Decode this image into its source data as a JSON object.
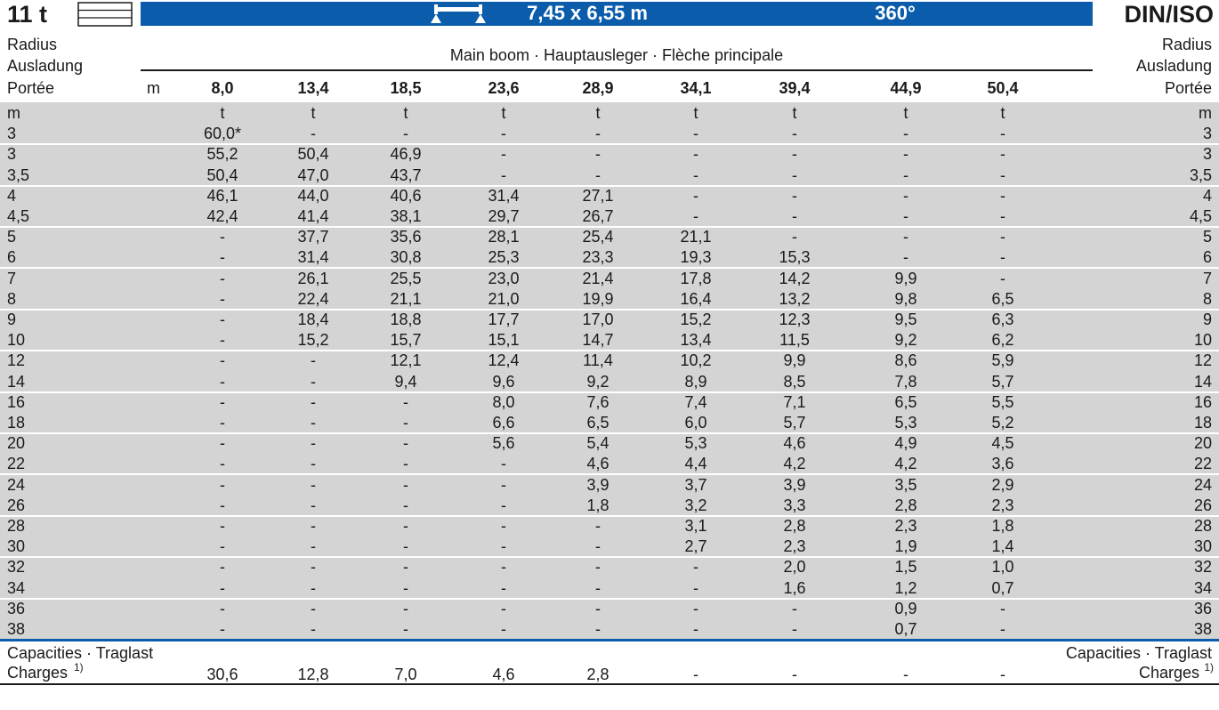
{
  "header": {
    "weight": "11 t",
    "outrigger": "7,45 x 6,55 m",
    "slewing": "360°",
    "standard": "DIN/ISO"
  },
  "labels": {
    "radius": [
      "Radius",
      "Ausladung",
      "Portée"
    ],
    "boom": "Main boom · Hauptausleger · Flèche principale",
    "length_unit": "m"
  },
  "boom_lengths": [
    "8,0",
    "13,4",
    "18,5",
    "23,6",
    "28,9",
    "34,1",
    "39,4",
    "44,9",
    "50,4"
  ],
  "units": {
    "radius": "m",
    "capacity": "t"
  },
  "rows": [
    {
      "radius": "3",
      "values": [
        "60,0*",
        "-",
        "-",
        "-",
        "-",
        "-",
        "-",
        "-",
        "-"
      ]
    },
    {
      "radius": "3",
      "values": [
        "55,2",
        "50,4",
        "46,9",
        "-",
        "-",
        "-",
        "-",
        "-",
        "-"
      ]
    },
    {
      "radius": "3,5",
      "values": [
        "50,4",
        "47,0",
        "43,7",
        "-",
        "-",
        "-",
        "-",
        "-",
        "-"
      ]
    },
    {
      "radius": "4",
      "values": [
        "46,1",
        "44,0",
        "40,6",
        "31,4",
        "27,1",
        "-",
        "-",
        "-",
        "-"
      ]
    },
    {
      "radius": "4,5",
      "values": [
        "42,4",
        "41,4",
        "38,1",
        "29,7",
        "26,7",
        "-",
        "-",
        "-",
        "-"
      ]
    },
    {
      "radius": "5",
      "values": [
        "-",
        "37,7",
        "35,6",
        "28,1",
        "25,4",
        "21,1",
        "-",
        "-",
        "-"
      ]
    },
    {
      "radius": "6",
      "values": [
        "-",
        "31,4",
        "30,8",
        "25,3",
        "23,3",
        "19,3",
        "15,3",
        "-",
        "-"
      ]
    },
    {
      "radius": "7",
      "values": [
        "-",
        "26,1",
        "25,5",
        "23,0",
        "21,4",
        "17,8",
        "14,2",
        "9,9",
        "-"
      ]
    },
    {
      "radius": "8",
      "values": [
        "-",
        "22,4",
        "21,1",
        "21,0",
        "19,9",
        "16,4",
        "13,2",
        "9,8",
        "6,5"
      ]
    },
    {
      "radius": "9",
      "values": [
        "-",
        "18,4",
        "18,8",
        "17,7",
        "17,0",
        "15,2",
        "12,3",
        "9,5",
        "6,3"
      ]
    },
    {
      "radius": "10",
      "values": [
        "-",
        "15,2",
        "15,7",
        "15,1",
        "14,7",
        "13,4",
        "11,5",
        "9,2",
        "6,2"
      ]
    },
    {
      "radius": "12",
      "values": [
        "-",
        "-",
        "12,1",
        "12,4",
        "11,4",
        "10,2",
        "9,9",
        "8,6",
        "5,9"
      ]
    },
    {
      "radius": "14",
      "values": [
        "-",
        "-",
        "9,4",
        "9,6",
        "9,2",
        "8,9",
        "8,5",
        "7,8",
        "5,7"
      ]
    },
    {
      "radius": "16",
      "values": [
        "-",
        "-",
        "-",
        "8,0",
        "7,6",
        "7,4",
        "7,1",
        "6,5",
        "5,5"
      ]
    },
    {
      "radius": "18",
      "values": [
        "-",
        "-",
        "-",
        "6,6",
        "6,5",
        "6,0",
        "5,7",
        "5,3",
        "5,2"
      ]
    },
    {
      "radius": "20",
      "values": [
        "-",
        "-",
        "-",
        "5,6",
        "5,4",
        "5,3",
        "4,6",
        "4,9",
        "4,5"
      ]
    },
    {
      "radius": "22",
      "values": [
        "-",
        "-",
        "-",
        "-",
        "4,6",
        "4,4",
        "4,2",
        "4,2",
        "3,6"
      ]
    },
    {
      "radius": "24",
      "values": [
        "-",
        "-",
        "-",
        "-",
        "3,9",
        "3,7",
        "3,9",
        "3,5",
        "2,9"
      ]
    },
    {
      "radius": "26",
      "values": [
        "-",
        "-",
        "-",
        "-",
        "1,8",
        "3,2",
        "3,3",
        "2,8",
        "2,3"
      ]
    },
    {
      "radius": "28",
      "values": [
        "-",
        "-",
        "-",
        "-",
        "-",
        "3,1",
        "2,8",
        "2,3",
        "1,8"
      ]
    },
    {
      "radius": "30",
      "values": [
        "-",
        "-",
        "-",
        "-",
        "-",
        "2,7",
        "2,3",
        "1,9",
        "1,4"
      ]
    },
    {
      "radius": "32",
      "values": [
        "-",
        "-",
        "-",
        "-",
        "-",
        "-",
        "2,0",
        "1,5",
        "1,0"
      ]
    },
    {
      "radius": "34",
      "values": [
        "-",
        "-",
        "-",
        "-",
        "-",
        "-",
        "1,6",
        "1,2",
        "0,7"
      ]
    },
    {
      "radius": "36",
      "values": [
        "-",
        "-",
        "-",
        "-",
        "-",
        "-",
        "-",
        "0,9",
        "-"
      ]
    },
    {
      "radius": "38",
      "values": [
        "-",
        "-",
        "-",
        "-",
        "-",
        "-",
        "-",
        "0,7",
        "-"
      ]
    }
  ],
  "footer": {
    "label": [
      "Capacities · Traglast",
      "Charges"
    ],
    "note": "1)",
    "values": [
      "30,6",
      "12,8",
      "7,0",
      "4,6",
      "2,8",
      "-",
      "-",
      "-",
      "-"
    ]
  }
}
